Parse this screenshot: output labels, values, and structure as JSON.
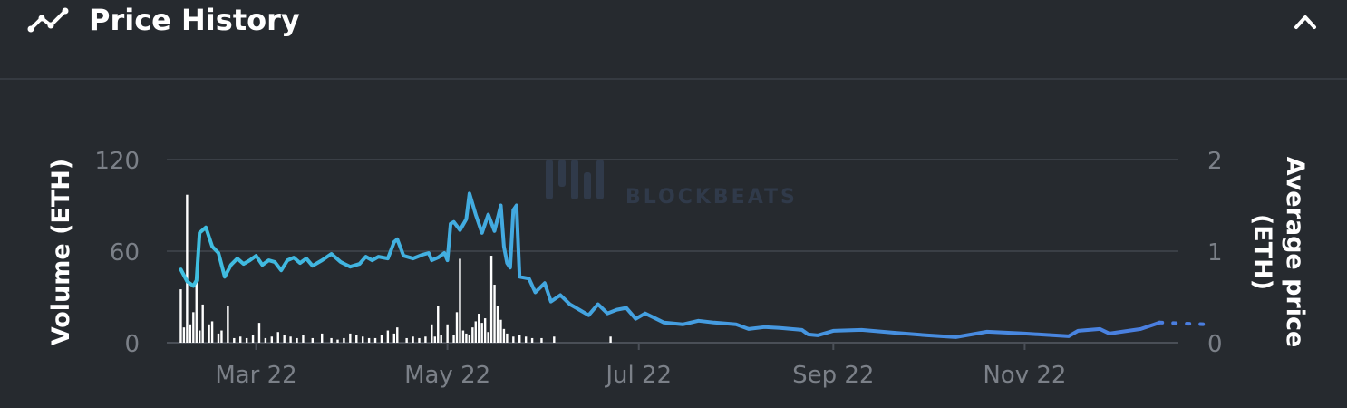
{
  "header": {
    "title": "Price History",
    "icon": "trend-line-icon",
    "collapse_icon": "chevron-up-icon"
  },
  "chart_data": {
    "type": "bar+line",
    "title": "",
    "y_left_label": "Volume (ETH)",
    "y_right_label_line1": "Average price",
    "y_right_label_line2": "(ETH)",
    "x_ticks": [
      "Mar 22",
      "May 22",
      "Jul 22",
      "Sep 22",
      "Nov 22"
    ],
    "x_tick_dates": [
      "2022-03-01",
      "2022-05-01",
      "2022-07-01",
      "2022-09-01",
      "2022-11-01"
    ],
    "x_range": [
      "2022-02-04",
      "2022-12-20"
    ],
    "y_left_ticks": [
      "0",
      "60",
      "120"
    ],
    "y_left_range": [
      0,
      120
    ],
    "y_right_ticks": [
      "0",
      "1",
      "2"
    ],
    "y_right_range": [
      0,
      2
    ],
    "grid": true,
    "colors": {
      "price_start": "#3fbfe0",
      "price_end": "#4a7ee0",
      "bars": "#ffffff",
      "grid": "#3a3f46",
      "axis_text": "#7b8088"
    },
    "watermark": "BLOCKBEATS",
    "volume": [
      {
        "date": "2022-02-05",
        "v": 35
      },
      {
        "date": "2022-02-06",
        "v": 10
      },
      {
        "date": "2022-02-07",
        "v": 97
      },
      {
        "date": "2022-02-08",
        "v": 12
      },
      {
        "date": "2022-02-09",
        "v": 20
      },
      {
        "date": "2022-02-10",
        "v": 40
      },
      {
        "date": "2022-02-11",
        "v": 8
      },
      {
        "date": "2022-02-12",
        "v": 25
      },
      {
        "date": "2022-02-14",
        "v": 12
      },
      {
        "date": "2022-02-15",
        "v": 14
      },
      {
        "date": "2022-02-17",
        "v": 6
      },
      {
        "date": "2022-02-18",
        "v": 8
      },
      {
        "date": "2022-02-20",
        "v": 24
      },
      {
        "date": "2022-02-22",
        "v": 3
      },
      {
        "date": "2022-02-24",
        "v": 4
      },
      {
        "date": "2022-02-26",
        "v": 3
      },
      {
        "date": "2022-02-28",
        "v": 5
      },
      {
        "date": "2022-03-02",
        "v": 13
      },
      {
        "date": "2022-03-04",
        "v": 3
      },
      {
        "date": "2022-03-06",
        "v": 4
      },
      {
        "date": "2022-03-08",
        "v": 7
      },
      {
        "date": "2022-03-10",
        "v": 5
      },
      {
        "date": "2022-03-12",
        "v": 4
      },
      {
        "date": "2022-03-14",
        "v": 3
      },
      {
        "date": "2022-03-16",
        "v": 5
      },
      {
        "date": "2022-03-19",
        "v": 3
      },
      {
        "date": "2022-03-22",
        "v": 6
      },
      {
        "date": "2022-03-25",
        "v": 3
      },
      {
        "date": "2022-03-27",
        "v": 2
      },
      {
        "date": "2022-03-29",
        "v": 3
      },
      {
        "date": "2022-03-31",
        "v": 6
      },
      {
        "date": "2022-04-02",
        "v": 5
      },
      {
        "date": "2022-04-04",
        "v": 4
      },
      {
        "date": "2022-04-06",
        "v": 3
      },
      {
        "date": "2022-04-08",
        "v": 3
      },
      {
        "date": "2022-04-10",
        "v": 5
      },
      {
        "date": "2022-04-12",
        "v": 8
      },
      {
        "date": "2022-04-14",
        "v": 6
      },
      {
        "date": "2022-04-15",
        "v": 10
      },
      {
        "date": "2022-04-18",
        "v": 3
      },
      {
        "date": "2022-04-20",
        "v": 4
      },
      {
        "date": "2022-04-22",
        "v": 3
      },
      {
        "date": "2022-04-24",
        "v": 4
      },
      {
        "date": "2022-04-26",
        "v": 12
      },
      {
        "date": "2022-04-27",
        "v": 4
      },
      {
        "date": "2022-04-28",
        "v": 24
      },
      {
        "date": "2022-04-29",
        "v": 5
      },
      {
        "date": "2022-05-01",
        "v": 12
      },
      {
        "date": "2022-05-03",
        "v": 5
      },
      {
        "date": "2022-05-04",
        "v": 20
      },
      {
        "date": "2022-05-05",
        "v": 55
      },
      {
        "date": "2022-05-06",
        "v": 8
      },
      {
        "date": "2022-05-07",
        "v": 6
      },
      {
        "date": "2022-05-08",
        "v": 5
      },
      {
        "date": "2022-05-09",
        "v": 10
      },
      {
        "date": "2022-05-10",
        "v": 14
      },
      {
        "date": "2022-05-11",
        "v": 19
      },
      {
        "date": "2022-05-12",
        "v": 13
      },
      {
        "date": "2022-05-13",
        "v": 16
      },
      {
        "date": "2022-05-14",
        "v": 7
      },
      {
        "date": "2022-05-15",
        "v": 57
      },
      {
        "date": "2022-05-16",
        "v": 38
      },
      {
        "date": "2022-05-17",
        "v": 24
      },
      {
        "date": "2022-05-18",
        "v": 15
      },
      {
        "date": "2022-05-19",
        "v": 9
      },
      {
        "date": "2022-05-20",
        "v": 6
      },
      {
        "date": "2022-05-22",
        "v": 4
      },
      {
        "date": "2022-05-24",
        "v": 5
      },
      {
        "date": "2022-05-26",
        "v": 4
      },
      {
        "date": "2022-05-28",
        "v": 3
      },
      {
        "date": "2022-05-31",
        "v": 3
      },
      {
        "date": "2022-06-04",
        "v": 4
      },
      {
        "date": "2022-06-22",
        "v": 4
      }
    ],
    "price": [
      {
        "date": "2022-02-05",
        "p": 0.8
      },
      {
        "date": "2022-02-07",
        "p": 0.67
      },
      {
        "date": "2022-02-09",
        "p": 0.62
      },
      {
        "date": "2022-02-10",
        "p": 0.68
      },
      {
        "date": "2022-02-11",
        "p": 1.2
      },
      {
        "date": "2022-02-13",
        "p": 1.26
      },
      {
        "date": "2022-02-15",
        "p": 1.05
      },
      {
        "date": "2022-02-17",
        "p": 0.98
      },
      {
        "date": "2022-02-19",
        "p": 0.72
      },
      {
        "date": "2022-02-21",
        "p": 0.85
      },
      {
        "date": "2022-02-23",
        "p": 0.92
      },
      {
        "date": "2022-02-25",
        "p": 0.86
      },
      {
        "date": "2022-02-27",
        "p": 0.9
      },
      {
        "date": "2022-03-01",
        "p": 0.95
      },
      {
        "date": "2022-03-03",
        "p": 0.85
      },
      {
        "date": "2022-03-05",
        "p": 0.9
      },
      {
        "date": "2022-03-07",
        "p": 0.88
      },
      {
        "date": "2022-03-09",
        "p": 0.79
      },
      {
        "date": "2022-03-11",
        "p": 0.9
      },
      {
        "date": "2022-03-13",
        "p": 0.93
      },
      {
        "date": "2022-03-15",
        "p": 0.87
      },
      {
        "date": "2022-03-17",
        "p": 0.92
      },
      {
        "date": "2022-03-19",
        "p": 0.84
      },
      {
        "date": "2022-03-22",
        "p": 0.9
      },
      {
        "date": "2022-03-25",
        "p": 0.97
      },
      {
        "date": "2022-03-28",
        "p": 0.88
      },
      {
        "date": "2022-03-31",
        "p": 0.83
      },
      {
        "date": "2022-04-03",
        "p": 0.86
      },
      {
        "date": "2022-04-05",
        "p": 0.94
      },
      {
        "date": "2022-04-07",
        "p": 0.9
      },
      {
        "date": "2022-04-09",
        "p": 0.94
      },
      {
        "date": "2022-04-12",
        "p": 0.92
      },
      {
        "date": "2022-04-14",
        "p": 1.1
      },
      {
        "date": "2022-04-15",
        "p": 1.13
      },
      {
        "date": "2022-04-17",
        "p": 0.95
      },
      {
        "date": "2022-04-20",
        "p": 0.92
      },
      {
        "date": "2022-04-23",
        "p": 0.96
      },
      {
        "date": "2022-04-25",
        "p": 0.98
      },
      {
        "date": "2022-04-26",
        "p": 0.9
      },
      {
        "date": "2022-04-28",
        "p": 0.93
      },
      {
        "date": "2022-04-30",
        "p": 0.98
      },
      {
        "date": "2022-05-01",
        "p": 0.9
      },
      {
        "date": "2022-05-02",
        "p": 1.3
      },
      {
        "date": "2022-05-03",
        "p": 1.32
      },
      {
        "date": "2022-05-05",
        "p": 1.23
      },
      {
        "date": "2022-05-07",
        "p": 1.35
      },
      {
        "date": "2022-05-08",
        "p": 1.63
      },
      {
        "date": "2022-05-10",
        "p": 1.4
      },
      {
        "date": "2022-05-12",
        "p": 1.2
      },
      {
        "date": "2022-05-14",
        "p": 1.4
      },
      {
        "date": "2022-05-16",
        "p": 1.22
      },
      {
        "date": "2022-05-18",
        "p": 1.5
      },
      {
        "date": "2022-05-19",
        "p": 1.05
      },
      {
        "date": "2022-05-20",
        "p": 0.87
      },
      {
        "date": "2022-05-21",
        "p": 0.82
      },
      {
        "date": "2022-05-22",
        "p": 1.45
      },
      {
        "date": "2022-05-23",
        "p": 1.5
      },
      {
        "date": "2022-05-24",
        "p": 0.72
      },
      {
        "date": "2022-05-27",
        "p": 0.7
      },
      {
        "date": "2022-05-29",
        "p": 0.55
      },
      {
        "date": "2022-06-01",
        "p": 0.65
      },
      {
        "date": "2022-06-03",
        "p": 0.45
      },
      {
        "date": "2022-06-06",
        "p": 0.52
      },
      {
        "date": "2022-06-09",
        "p": 0.42
      },
      {
        "date": "2022-06-12",
        "p": 0.36
      },
      {
        "date": "2022-06-15",
        "p": 0.3
      },
      {
        "date": "2022-06-18",
        "p": 0.42
      },
      {
        "date": "2022-06-21",
        "p": 0.32
      },
      {
        "date": "2022-06-24",
        "p": 0.36
      },
      {
        "date": "2022-06-27",
        "p": 0.38
      },
      {
        "date": "2022-06-30",
        "p": 0.26
      },
      {
        "date": "2022-07-03",
        "p": 0.32
      },
      {
        "date": "2022-07-06",
        "p": 0.27
      },
      {
        "date": "2022-07-09",
        "p": 0.22
      },
      {
        "date": "2022-07-15",
        "p": 0.2
      },
      {
        "date": "2022-07-20",
        "p": 0.24
      },
      {
        "date": "2022-07-25",
        "p": 0.22
      },
      {
        "date": "2022-08-01",
        "p": 0.2
      },
      {
        "date": "2022-08-05",
        "p": 0.15
      },
      {
        "date": "2022-08-10",
        "p": 0.17
      },
      {
        "date": "2022-08-15",
        "p": 0.16
      },
      {
        "date": "2022-08-22",
        "p": 0.14
      },
      {
        "date": "2022-08-24",
        "p": 0.09
      },
      {
        "date": "2022-08-27",
        "p": 0.08
      },
      {
        "date": "2022-09-01",
        "p": 0.13
      },
      {
        "date": "2022-09-10",
        "p": 0.14
      },
      {
        "date": "2022-09-20",
        "p": 0.11
      },
      {
        "date": "2022-10-01",
        "p": 0.08
      },
      {
        "date": "2022-10-10",
        "p": 0.06
      },
      {
        "date": "2022-10-20",
        "p": 0.12
      },
      {
        "date": "2022-11-01",
        "p": 0.1
      },
      {
        "date": "2022-11-15",
        "p": 0.07
      },
      {
        "date": "2022-11-18",
        "p": 0.13
      },
      {
        "date": "2022-11-25",
        "p": 0.15
      },
      {
        "date": "2022-11-28",
        "p": 0.1
      },
      {
        "date": "2022-12-02",
        "p": 0.12
      },
      {
        "date": "2022-12-08",
        "p": 0.15
      },
      {
        "date": "2022-12-14",
        "p": 0.22
      }
    ],
    "projection": [
      {
        "date": "2022-12-14",
        "p": 0.22
      },
      {
        "date": "2022-12-29",
        "p": 0.2
      }
    ]
  }
}
